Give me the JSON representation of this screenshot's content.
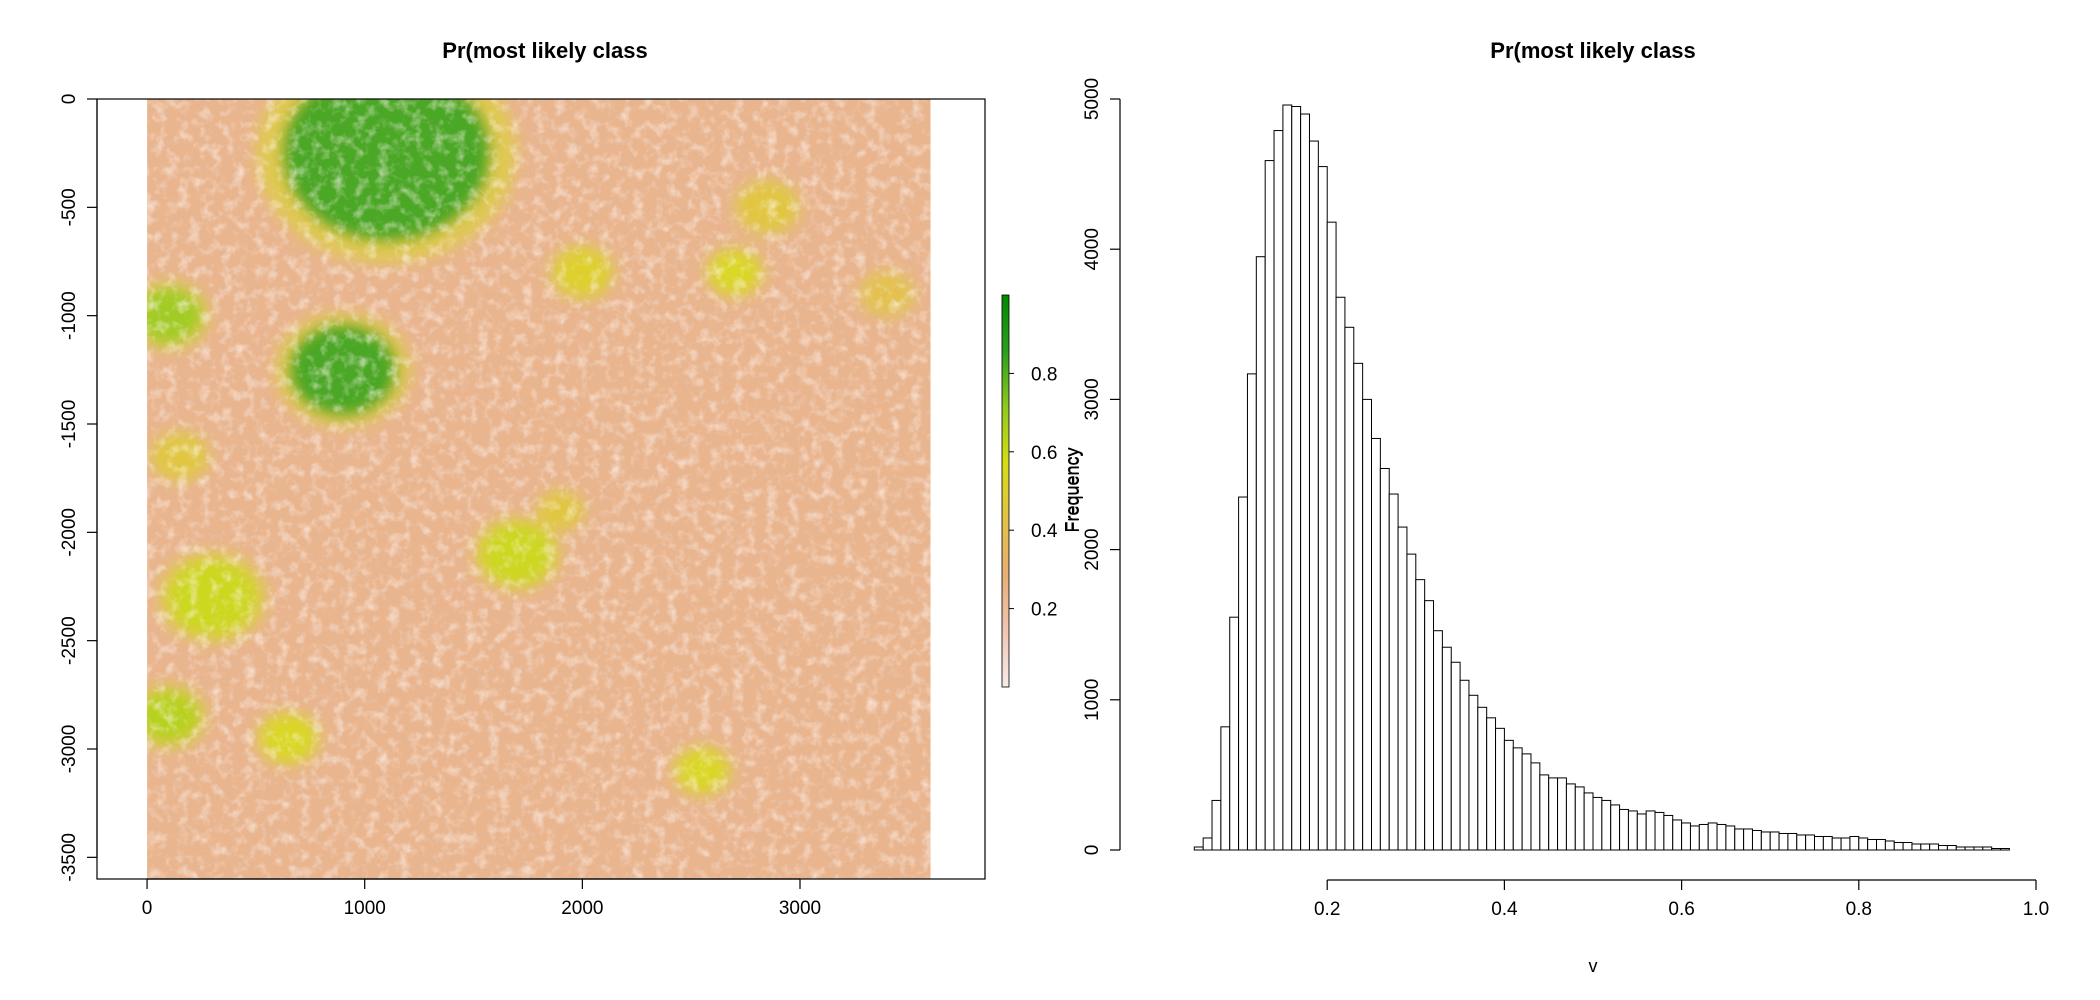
{
  "chart_data": [
    {
      "type": "heatmap",
      "title": "Pr(most likely class",
      "xlabel": "",
      "ylabel": "",
      "xlim": [
        -230,
        3850
      ],
      "ylim": [
        -3600,
        0
      ],
      "xticks": [
        "0",
        "1000",
        "2000",
        "3000"
      ],
      "yticks": [
        "0",
        "-500",
        "-1000",
        "-1500",
        "-2000",
        "-2500",
        "-3000",
        "-3500"
      ],
      "legend": {
        "position": "right",
        "range": [
          0,
          1
        ],
        "ticks": [
          "0.2",
          "0.4",
          "0.6",
          "0.8"
        ],
        "colors": [
          "#f6ece9",
          "#f0c6b3",
          "#e8ae76",
          "#e3c244",
          "#d6dd14",
          "#8fc91f",
          "#2a9f1e",
          "#008a00"
        ],
        "label": "Frequency"
      },
      "palette": {
        "background": "#e9b58f",
        "light": "#f5d7cb",
        "yellow": "#d8d820",
        "green": "#4bb51a"
      },
      "patches": [
        {
          "x": 1100,
          "y": -250,
          "r": 480,
          "level": 0.85
        },
        {
          "x": 100,
          "y": -1000,
          "r": 150,
          "level": 0.7
        },
        {
          "x": 900,
          "y": -1250,
          "r": 250,
          "level": 0.85
        },
        {
          "x": 300,
          "y": -2300,
          "r": 200,
          "level": 0.6
        },
        {
          "x": 1700,
          "y": -2100,
          "r": 160,
          "level": 0.6
        },
        {
          "x": 2000,
          "y": -800,
          "r": 120,
          "level": 0.5
        },
        {
          "x": 2700,
          "y": -800,
          "r": 110,
          "level": 0.55
        },
        {
          "x": 100,
          "y": -2850,
          "r": 140,
          "level": 0.65
        },
        {
          "x": 650,
          "y": -2950,
          "r": 120,
          "level": 0.55
        },
        {
          "x": 2550,
          "y": -3100,
          "r": 110,
          "level": 0.55
        },
        {
          "x": 2850,
          "y": -500,
          "r": 120,
          "level": 0.45
        },
        {
          "x": 150,
          "y": -1650,
          "r": 110,
          "level": 0.45
        },
        {
          "x": 1900,
          "y": -1900,
          "r": 90,
          "level": 0.45
        },
        {
          "x": 3400,
          "y": -900,
          "r": 100,
          "level": 0.4
        }
      ]
    },
    {
      "type": "bar",
      "title": "Pr(most likely class",
      "xlabel": "v",
      "ylabel": "Frequency",
      "xlim": [
        0,
        1
      ],
      "ylim": [
        0,
        5000
      ],
      "xticks": [
        "0.2",
        "0.4",
        "0.6",
        "0.8",
        "1.0"
      ],
      "yticks": [
        "0",
        "1000",
        "2000",
        "3000",
        "4000",
        "5000"
      ],
      "bin_start": 0.05,
      "bin_width": 0.01,
      "values": [
        20,
        80,
        330,
        820,
        1550,
        2350,
        3170,
        3950,
        4590,
        4790,
        4960,
        4950,
        4900,
        4720,
        4550,
        4180,
        3680,
        3480,
        3240,
        3000,
        2740,
        2540,
        2370,
        2150,
        1970,
        1800,
        1660,
        1460,
        1350,
        1250,
        1130,
        1030,
        950,
        880,
        810,
        730,
        680,
        640,
        580,
        500,
        480,
        480,
        440,
        420,
        380,
        350,
        330,
        300,
        270,
        260,
        240,
        260,
        250,
        230,
        200,
        180,
        160,
        170,
        180,
        170,
        160,
        140,
        140,
        130,
        120,
        120,
        110,
        110,
        100,
        100,
        90,
        90,
        80,
        80,
        90,
        80,
        70,
        70,
        60,
        50,
        50,
        40,
        40,
        40,
        30,
        30,
        20,
        20,
        20,
        20,
        10,
        10
      ]
    }
  ]
}
